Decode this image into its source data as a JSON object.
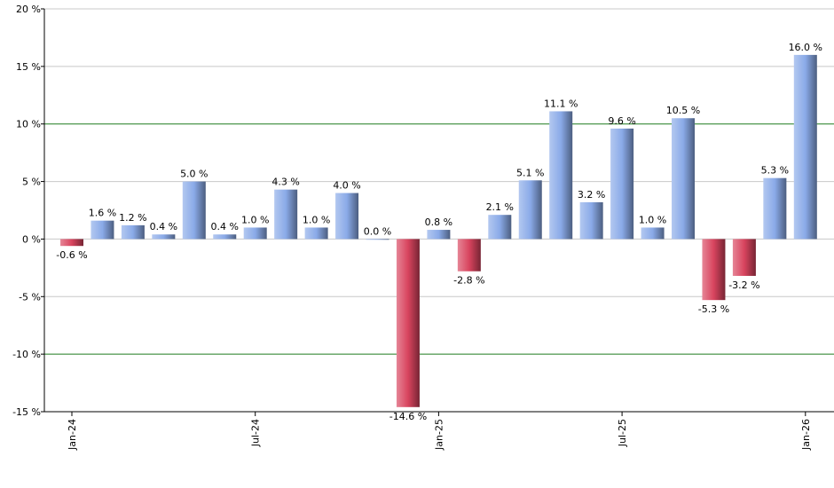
{
  "chart_data": {
    "type": "bar",
    "categories": [
      "Jan-24",
      null,
      null,
      null,
      null,
      null,
      "Jul-24",
      null,
      null,
      null,
      null,
      null,
      "Jan-25",
      null,
      null,
      null,
      null,
      null,
      "Jul-25",
      null,
      null,
      null,
      null,
      null,
      "Jan-26"
    ],
    "values": [
      -0.6,
      1.6,
      1.2,
      0.4,
      5.0,
      0.4,
      1.0,
      4.3,
      1.0,
      4.0,
      0.0,
      -14.6,
      0.8,
      -2.8,
      2.1,
      5.1,
      11.1,
      3.2,
      9.6,
      1.0,
      10.5,
      -5.3,
      -3.2,
      5.3,
      16.0
    ],
    "value_labels": [
      "-0.6 %",
      "1.6 %",
      "1.2 %",
      "0.4 %",
      "5.0 %",
      "0.4 %",
      "1.0 %",
      "4.3 %",
      "1.0 %",
      "4.0 %",
      "0.0 %",
      "-14.6 %",
      "0.8 %",
      "-2.8 %",
      "2.1 %",
      "5.1 %",
      "11.1 %",
      "3.2 %",
      "9.6 %",
      "1.0 %",
      "10.5 %",
      "-5.3 %",
      "-3.2 %",
      "5.3 %",
      "16.0 %"
    ],
    "positive_color": "#8aaae8",
    "negative_color": "#d8445e",
    "ylim": [
      -15,
      20
    ],
    "yticks": [
      {
        "value": -15,
        "label": "-15 %"
      },
      {
        "value": -10,
        "label": "-10 %"
      },
      {
        "value": -5,
        "label": "-5 %"
      },
      {
        "value": 0,
        "label": "0 %"
      },
      {
        "value": 5,
        "label": "5 %"
      },
      {
        "value": 10,
        "label": "10 %"
      },
      {
        "value": 15,
        "label": "15 %"
      },
      {
        "value": 20,
        "label": "20 %"
      }
    ],
    "grid": true,
    "grid_color": "#c8c8c8",
    "highlight_grid_color": "#1e7b1e",
    "highlight_ticks": [
      -10,
      10
    ]
  }
}
